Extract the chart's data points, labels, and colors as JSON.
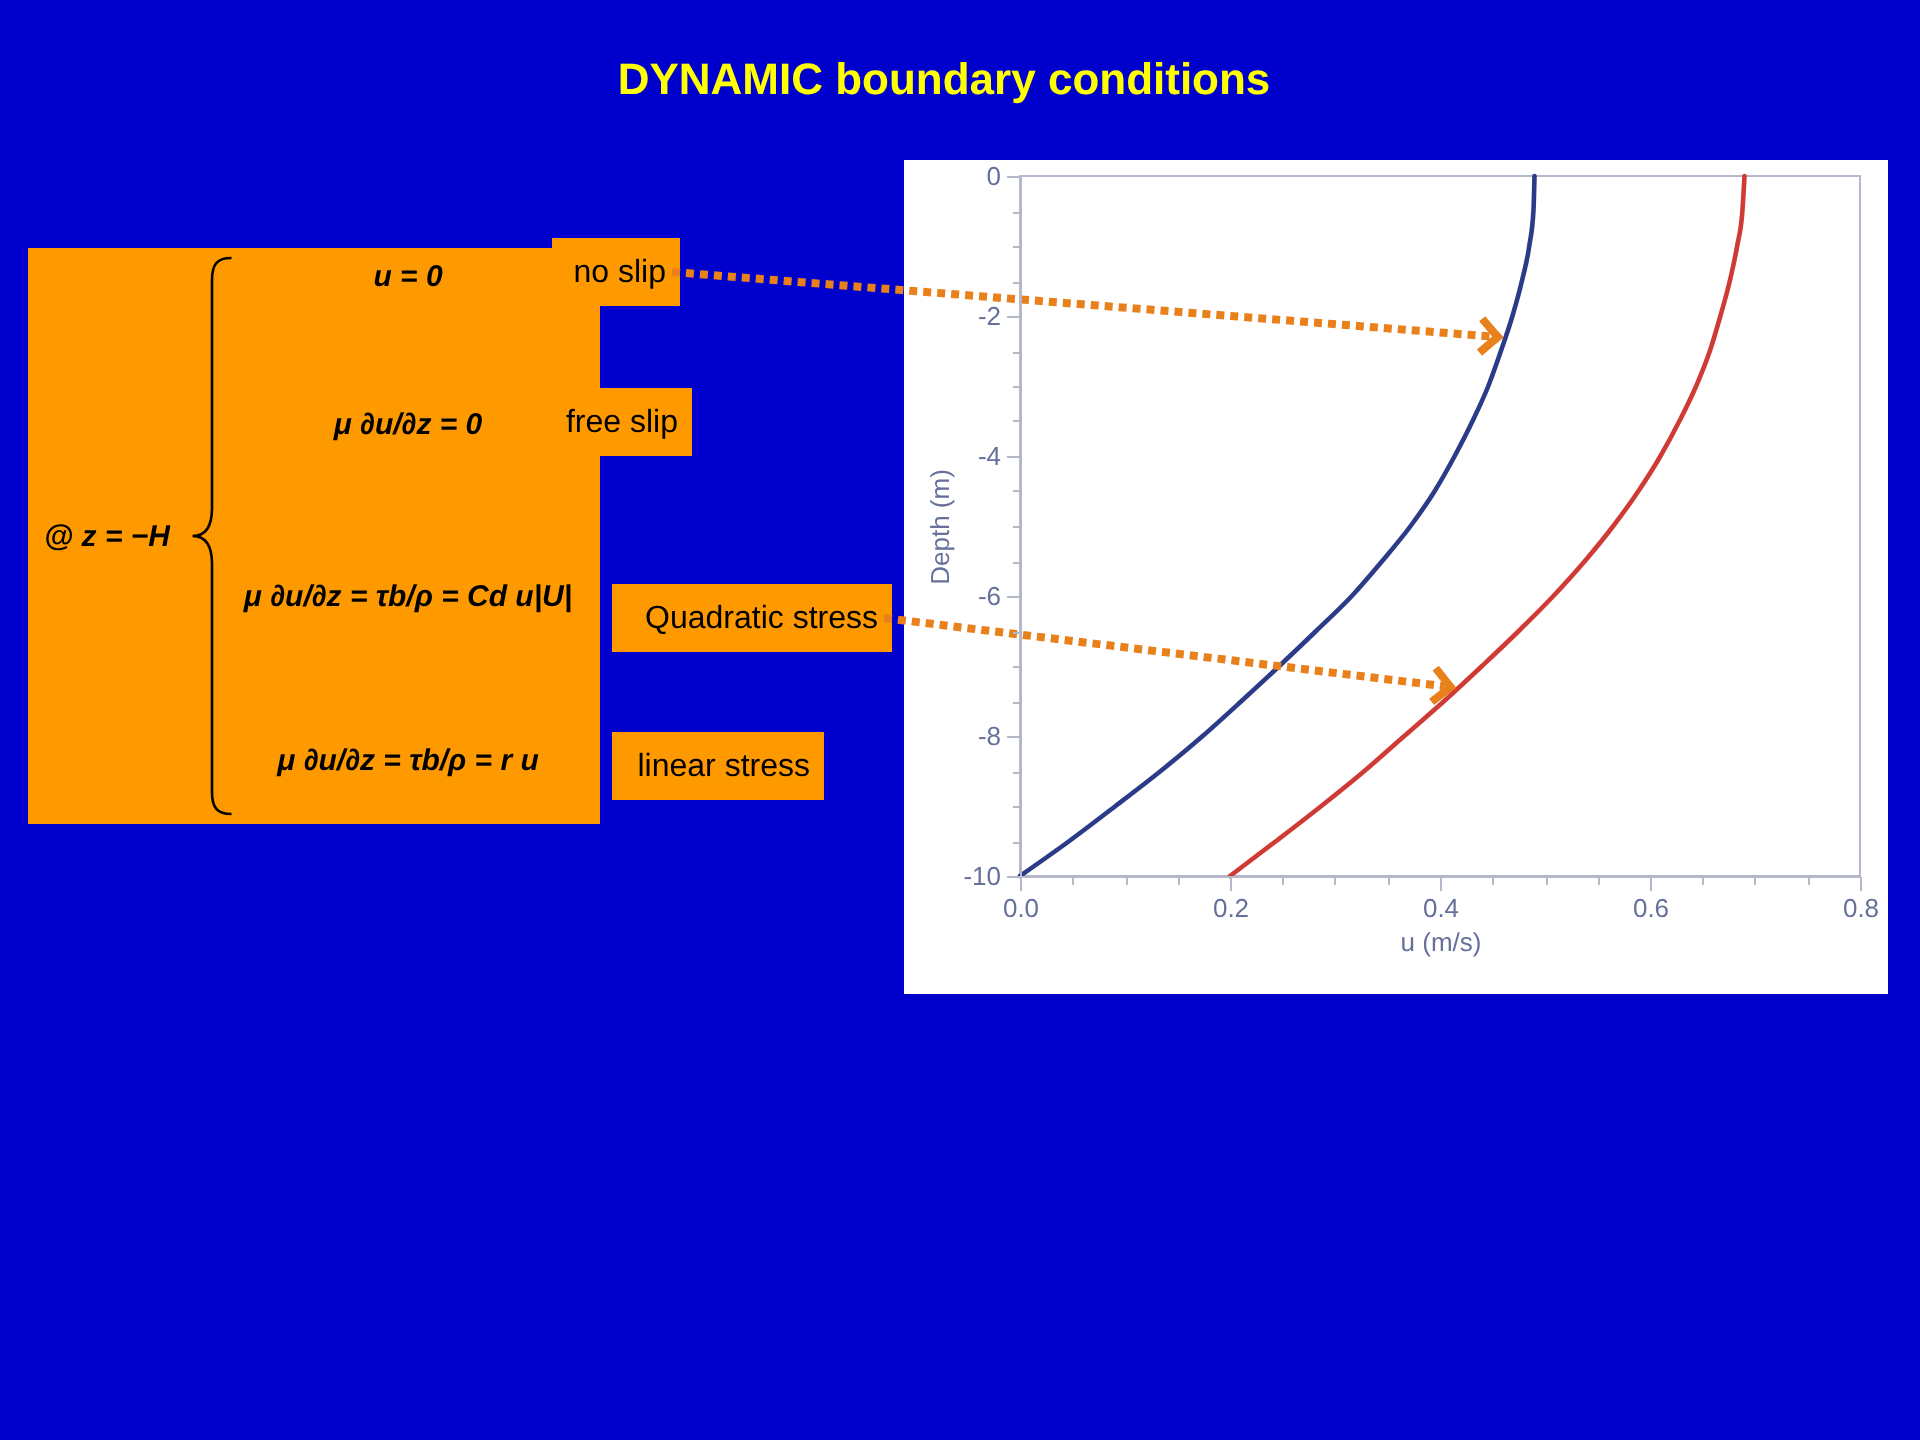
{
  "chart_data": {
    "type": "line",
    "title": "DYNAMIC boundary conditions",
    "xlabel": "u (m/s)",
    "ylabel": "Depth (m)",
    "xlim": [
      0,
      0.8
    ],
    "xticks": [
      {
        "value": 0,
        "label": "0.0"
      },
      {
        "value": 0.05,
        "label": null
      },
      {
        "value": 0.1,
        "label": null
      },
      {
        "value": 0.15,
        "label": null
      },
      0.2,
      {
        "value": 0.25,
        "label": null
      },
      {
        "value": 0.3,
        "label": null
      },
      {
        "value": 0.35,
        "label": null
      },
      0.4,
      {
        "value": 0.45,
        "label": null
      },
      {
        "value": 0.5,
        "label": null
      },
      {
        "value": 0.55,
        "label": null
      },
      0.6,
      {
        "value": 0.65,
        "label": null
      },
      {
        "value": 0.7,
        "label": null
      },
      {
        "value": 0.75,
        "label": null
      },
      0.8
    ],
    "ylim": [
      -10,
      0
    ],
    "yticks": [
      -10,
      {
        "value": -9.5,
        "label": null
      },
      {
        "value": -9,
        "label": null
      },
      {
        "value": -8.5,
        "label": null
      },
      -8,
      {
        "value": -7.5,
        "label": null
      },
      {
        "value": -7,
        "label": null
      },
      {
        "value": -6.5,
        "label": null
      },
      -6,
      {
        "value": -5.5,
        "label": null
      },
      {
        "value": -5,
        "label": null
      },
      {
        "value": -4.5,
        "label": null
      },
      -4,
      {
        "value": -3.5,
        "label": null
      },
      {
        "value": -3,
        "label": null
      },
      {
        "value": -2.5,
        "label": null
      },
      -2,
      {
        "value": -1.5,
        "label": null
      },
      {
        "value": -1,
        "label": null
      },
      {
        "value": -0.5,
        "label": null
      },
      0
    ],
    "grid": false,
    "line_style": "solid",
    "series": [
      {
        "color": "#2c3b87",
        "x": [
          0.0,
          0.047,
          0.091,
          0.134,
          0.174,
          0.211,
          0.247,
          0.282,
          0.316,
          0.345,
          0.372,
          0.395,
          0.414,
          0.431,
          0.446,
          0.458,
          0.469,
          0.478,
          0.485,
          0.489,
          0.49
        ],
        "values": [
          -10,
          -9.5,
          -9,
          -8.5,
          -8,
          -7.5,
          -7,
          -6.5,
          -6,
          -5.5,
          -5,
          -4.5,
          -4,
          -3.5,
          -3,
          -2.5,
          -2,
          -1.5,
          -1,
          -0.5,
          0
        ]
      },
      {
        "color": "#d03a35",
        "x": [
          0.2,
          0.244,
          0.287,
          0.328,
          0.366,
          0.404,
          0.44,
          0.475,
          0.508,
          0.538,
          0.565,
          0.589,
          0.61,
          0.628,
          0.644,
          0.657,
          0.667,
          0.676,
          0.683,
          0.688,
          0.69
        ],
        "values": [
          -10,
          -9.5,
          -9,
          -8.5,
          -8,
          -7.5,
          -7,
          -6.5,
          -6,
          -5.5,
          -5,
          -4.5,
          -4,
          -3.5,
          -3,
          -2.5,
          -2,
          -1.5,
          -1,
          -0.5,
          0
        ]
      }
    ],
    "annotations": [
      "@ z = −H",
      "u = 0",
      {
        "text": "no slip",
        "x": 0.455,
        "y": -2.3
      },
      "μ ∂u/∂z = 0",
      "free slip",
      "μ ∂u/∂z = τb/ρ = Cd u|U|",
      {
        "text": "Quadratic stress",
        "x": 0.41,
        "y": -7.3
      },
      "μ ∂u/∂z = τb/ρ = r u",
      "linear stress"
    ]
  }
}
